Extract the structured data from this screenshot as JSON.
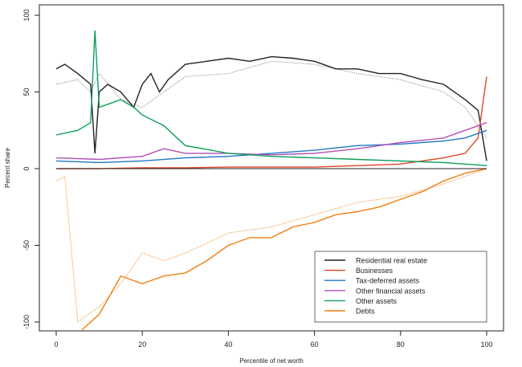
{
  "chart_data": {
    "type": "line",
    "title": "",
    "xlabel": "Percentile of net worth",
    "ylabel": "Percent share",
    "xlim": [
      -4,
      104
    ],
    "ylim": [
      -107,
      103
    ],
    "xticks": [
      0,
      20,
      40,
      60,
      80,
      100
    ],
    "yticks": [
      -100,
      -50,
      0,
      50,
      100
    ],
    "grid": false,
    "legend_position": "bottom-right",
    "series": [
      {
        "name": "Residential real estate",
        "color": "#222222",
        "style": "solid",
        "x": [
          0,
          2,
          5,
          8,
          9,
          10,
          12,
          15,
          18,
          20,
          22,
          24,
          26,
          30,
          35,
          40,
          45,
          50,
          55,
          60,
          65,
          70,
          75,
          80,
          85,
          90,
          95,
          98,
          100
        ],
        "y": [
          65,
          68,
          62,
          55,
          10,
          50,
          55,
          50,
          40,
          55,
          62,
          50,
          58,
          68,
          70,
          72,
          70,
          73,
          72,
          70,
          65,
          65,
          62,
          62,
          58,
          55,
          45,
          38,
          5
        ]
      },
      {
        "name": "Businesses",
        "color": "#e0452a",
        "style": "solid",
        "x": [
          0,
          10,
          20,
          30,
          40,
          50,
          60,
          70,
          80,
          85,
          90,
          95,
          98,
          100
        ],
        "y": [
          0,
          0,
          0.5,
          0.5,
          1,
          1,
          1,
          2,
          3,
          5,
          7,
          10,
          20,
          60
        ]
      },
      {
        "name": "Tax-deferred assets",
        "color": "#1f77c4",
        "style": "solid",
        "x": [
          0,
          10,
          20,
          30,
          40,
          50,
          60,
          70,
          80,
          90,
          95,
          100
        ],
        "y": [
          5,
          4,
          5,
          7,
          8,
          10,
          12,
          15,
          16,
          18,
          20,
          25
        ]
      },
      {
        "name": "Other financial assets",
        "color": "#b04fb8",
        "style": "solid",
        "x": [
          0,
          10,
          20,
          25,
          30,
          40,
          50,
          60,
          70,
          80,
          90,
          95,
          100
        ],
        "y": [
          7,
          6,
          8,
          13,
          10,
          10,
          9,
          10,
          13,
          17,
          20,
          25,
          30
        ]
      },
      {
        "name": "Other assets",
        "color": "#0f9f5a",
        "style": "solid",
        "x": [
          0,
          5,
          8,
          9,
          10,
          12,
          15,
          18,
          20,
          25,
          30,
          40,
          50,
          60,
          70,
          80,
          90,
          100
        ],
        "y": [
          22,
          25,
          30,
          90,
          40,
          42,
          45,
          40,
          35,
          28,
          15,
          10,
          8,
          7,
          6,
          5,
          4,
          2
        ]
      },
      {
        "name": "Debts",
        "color": "#f07f12",
        "style": "solid",
        "x": [
          6,
          10,
          15,
          20,
          25,
          30,
          35,
          40,
          45,
          50,
          55,
          60,
          65,
          70,
          75,
          80,
          85,
          90,
          95,
          100
        ],
        "y": [
          -105,
          -95,
          -70,
          -75,
          -70,
          -68,
          -60,
          -50,
          -45,
          -45,
          -38,
          -35,
          -30,
          -28,
          -25,
          -20,
          -15,
          -8,
          -3,
          0
        ]
      },
      {
        "color": "#777777",
        "style": "dotted",
        "x": [
          0,
          5,
          8,
          10,
          15,
          20,
          25,
          30,
          40,
          50,
          60,
          70,
          80,
          90,
          95,
          100
        ],
        "y": [
          55,
          58,
          50,
          62,
          45,
          40,
          50,
          60,
          62,
          70,
          68,
          62,
          58,
          50,
          40,
          20
        ]
      },
      {
        "color": "#f07f12",
        "style": "dotted",
        "x": [
          0,
          2,
          5,
          10,
          15,
          20,
          25,
          30,
          40,
          50,
          60,
          70,
          80,
          90,
          95,
          100
        ],
        "y": [
          -8,
          -5,
          -100,
          -90,
          -75,
          -55,
          -60,
          -55,
          -42,
          -38,
          -30,
          -22,
          -18,
          -10,
          -5,
          0
        ]
      }
    ]
  }
}
